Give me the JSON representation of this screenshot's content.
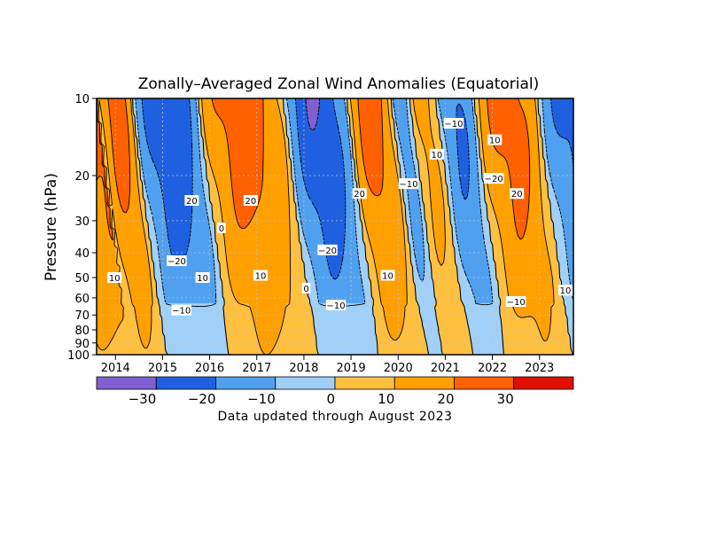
{
  "chart_data": {
    "type": "heatmap",
    "title": "Zonally–Averaged Zonal Wind Anomalies (Equatorial)",
    "ylabel": "Pressure (hPa)",
    "xlabel": "",
    "y_scale": "log",
    "y_reversed": true,
    "ylim": [
      100,
      10
    ],
    "y_ticks": [
      {
        "value": 10,
        "label": "10"
      },
      {
        "value": 20,
        "label": "20"
      },
      {
        "value": 30,
        "label": "30"
      },
      {
        "value": 40,
        "label": "40"
      },
      {
        "value": 50,
        "label": "50"
      },
      {
        "value": 60,
        "label": "60"
      },
      {
        "value": 70,
        "label": "70"
      },
      {
        "value": 80,
        "label": "80"
      },
      {
        "value": 90,
        "label": "90"
      },
      {
        "value": 100,
        "label": "100"
      }
    ],
    "xlim": [
      2013.6,
      2023.72
    ],
    "x_ticks": [
      {
        "value": 2014.0,
        "label": "2014"
      },
      {
        "value": 2015.0,
        "label": "2015"
      },
      {
        "value": 2016.0,
        "label": "2016"
      },
      {
        "value": 2017.0,
        "label": "2017"
      },
      {
        "value": 2018.0,
        "label": "2018"
      },
      {
        "value": 2019.0,
        "label": "2019"
      },
      {
        "value": 2020.0,
        "label": "2020"
      },
      {
        "value": 2021.0,
        "label": "2021"
      },
      {
        "value": 2022.0,
        "label": "2022"
      },
      {
        "value": 2023.0,
        "label": "2023"
      }
    ],
    "grid": true,
    "contour_interval": 10,
    "colorbar": {
      "placement": "bottom",
      "bins": [
        {
          "from": -40,
          "to": -30,
          "color": "#8060d0"
        },
        {
          "from": -30,
          "to": -20,
          "color": "#1f60e0"
        },
        {
          "from": -20,
          "to": -10,
          "color": "#50a0f0"
        },
        {
          "from": -10,
          "to": 0,
          "color": "#a0d0f8"
        },
        {
          "from": 0,
          "to": 10,
          "color": "#ffc040"
        },
        {
          "from": 10,
          "to": 20,
          "color": "#ffa000"
        },
        {
          "from": 20,
          "to": 30,
          "color": "#ff6000"
        },
        {
          "from": 30,
          "to": 40,
          "color": "#e01000"
        }
      ],
      "tick_values": [
        -30,
        -20,
        -10,
        0,
        10,
        20,
        30
      ],
      "tick_labels": [
        "−30",
        "−20",
        "−10",
        "0",
        "10",
        "20",
        "30"
      ]
    },
    "annotation": "Data updated through August 2023",
    "contour_labels": [
      {
        "x": 2013.98,
        "p": 50,
        "text": "10"
      },
      {
        "x": 2015.3,
        "p": 43,
        "text": "−20"
      },
      {
        "x": 2015.4,
        "p": 67,
        "text": "−10"
      },
      {
        "x": 2015.62,
        "p": 25,
        "text": "20"
      },
      {
        "x": 2015.85,
        "p": 50,
        "text": "10"
      },
      {
        "x": 2016.25,
        "p": 32,
        "text": "0"
      },
      {
        "x": 2016.87,
        "p": 25,
        "text": "20"
      },
      {
        "x": 2017.08,
        "p": 49,
        "text": "10"
      },
      {
        "x": 2018.05,
        "p": 55,
        "text": "0"
      },
      {
        "x": 2018.5,
        "p": 39,
        "text": "−20"
      },
      {
        "x": 2018.68,
        "p": 64,
        "text": "−10"
      },
      {
        "x": 2019.18,
        "p": 23.5,
        "text": "20"
      },
      {
        "x": 2019.78,
        "p": 49,
        "text": "10"
      },
      {
        "x": 2020.22,
        "p": 21.5,
        "text": "−10"
      },
      {
        "x": 2020.82,
        "p": 16.5,
        "text": "10"
      },
      {
        "x": 2021.18,
        "p": 12.5,
        "text": "−10"
      },
      {
        "x": 2022.05,
        "p": 14.5,
        "text": "10"
      },
      {
        "x": 2022.03,
        "p": 20.5,
        "text": "−20"
      },
      {
        "x": 2022.52,
        "p": 23.5,
        "text": "20"
      },
      {
        "x": 2022.5,
        "p": 62,
        "text": "−10"
      },
      {
        "x": 2023.55,
        "p": 56,
        "text": "10"
      }
    ],
    "qbo_phases": [
      {
        "t": 2013.6,
        "sign": 1,
        "amp": 25
      },
      {
        "t": 2014.35,
        "sign": -1,
        "amp": 30
      },
      {
        "t": 2015.75,
        "sign": 1,
        "amp": 27
      },
      {
        "t": 2017.55,
        "sign": -1,
        "amp": 30
      },
      {
        "t": 2018.9,
        "sign": 1,
        "amp": 26
      },
      {
        "t": 2019.85,
        "sign": -1,
        "amp": 16
      },
      {
        "t": 2020.25,
        "sign": 1,
        "amp": 14
      },
      {
        "t": 2020.8,
        "sign": -1,
        "amp": 22
      },
      {
        "t": 2021.6,
        "sign": 1,
        "amp": 25
      },
      {
        "t": 2022.95,
        "sign": -1,
        "amp": 24
      }
    ]
  }
}
